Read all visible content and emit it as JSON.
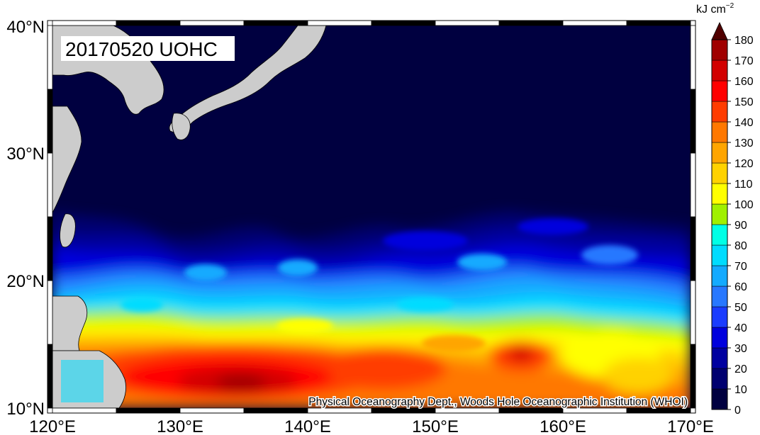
{
  "map": {
    "title_badge": "20170520 UOHC",
    "credit": "Physical Oceanography Dept., Woods Hole Oceanographic Institution (WHOI)",
    "lon_ticks": [
      "120°E",
      "130°E",
      "140°E",
      "150°E",
      "160°E",
      "170°E"
    ],
    "lat_ticks": [
      "40°N",
      "30°N",
      "20°N",
      "10°N"
    ],
    "lon_range": [
      120,
      170
    ],
    "lat_range": [
      10,
      40
    ],
    "land_color": "#cccccc",
    "ocean_low_color": "#000040"
  },
  "colorbar": {
    "unit": "kJ cm",
    "unit_exp": "−2",
    "ticks": [
      "0",
      "10",
      "20",
      "30",
      "40",
      "50",
      "60",
      "70",
      "80",
      "90",
      "100",
      "110",
      "120",
      "130",
      "140",
      "150",
      "160",
      "170",
      "180"
    ],
    "colors": [
      "#000040",
      "#000070",
      "#0000a0",
      "#0000dd",
      "#1a3cff",
      "#2878ff",
      "#14aaff",
      "#00dcff",
      "#00ffe6",
      "#a0f000",
      "#ffff00",
      "#ffd200",
      "#ffa500",
      "#ff7800",
      "#ff3c00",
      "#ff0000",
      "#d20000",
      "#a00000",
      "#500000"
    ]
  }
}
